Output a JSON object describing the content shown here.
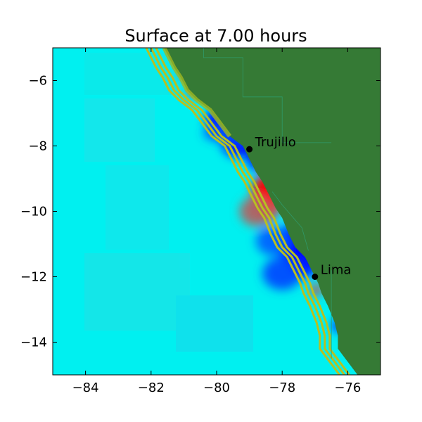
{
  "chart_data": {
    "type": "heatmap",
    "title": "Surface at 7.00 hours",
    "xlabel": "",
    "ylabel": "",
    "xlim": [
      -85,
      -75
    ],
    "ylim": [
      -15,
      -5
    ],
    "x_ticks": [
      -84,
      -82,
      -80,
      -78,
      -76
    ],
    "y_ticks": [
      -6,
      -8,
      -10,
      -12,
      -14
    ],
    "x_tick_labels": [
      "−84",
      "−82",
      "−80",
      "−78",
      "−76"
    ],
    "y_tick_labels": [
      "−6",
      "−8",
      "−10",
      "−12",
      "−14"
    ],
    "grid": false,
    "colors": {
      "ocean": "#00f0f0",
      "land": "#357a35",
      "contour": "#b8c020",
      "positive": "#ff0000",
      "negative": "#0000ff"
    },
    "cities": [
      {
        "name": "Trujillo",
        "lon": -79.0,
        "lat": -8.1
      },
      {
        "name": "Lima",
        "lon": -77.0,
        "lat": -12.0
      }
    ],
    "coastline": [
      [
        -81.6,
        -5.0
      ],
      [
        -81.3,
        -5.6
      ],
      [
        -81.1,
        -5.9
      ],
      [
        -80.9,
        -6.3
      ],
      [
        -80.6,
        -6.6
      ],
      [
        -80.2,
        -6.9
      ],
      [
        -79.9,
        -7.3
      ],
      [
        -79.6,
        -7.7
      ],
      [
        -79.2,
        -8.0
      ],
      [
        -79.0,
        -8.4
      ],
      [
        -78.8,
        -8.8
      ],
      [
        -78.6,
        -9.1
      ],
      [
        -78.4,
        -9.5
      ],
      [
        -78.2,
        -9.9
      ],
      [
        -78.0,
        -10.2
      ],
      [
        -77.8,
        -10.7
      ],
      [
        -77.6,
        -11.1
      ],
      [
        -77.3,
        -11.4
      ],
      [
        -77.1,
        -11.8
      ],
      [
        -76.9,
        -12.2
      ],
      [
        -76.8,
        -12.5
      ],
      [
        -76.6,
        -12.9
      ],
      [
        -76.4,
        -13.4
      ],
      [
        -76.3,
        -13.8
      ],
      [
        -76.3,
        -14.2
      ],
      [
        -76.0,
        -14.6
      ],
      [
        -75.7,
        -15.0
      ]
    ],
    "anomalies": [
      {
        "lon": -79.8,
        "lat": -7.2,
        "rx": 0.55,
        "ry": 0.35,
        "value": -1.0
      },
      {
        "lon": -79.3,
        "lat": -7.9,
        "rx": 0.55,
        "ry": 0.45,
        "value": -0.9
      },
      {
        "lon": -78.7,
        "lat": -8.4,
        "rx": 0.35,
        "ry": 0.35,
        "value": -1.0
      },
      {
        "lon": -79.5,
        "lat": -7.6,
        "rx": 0.9,
        "ry": 0.3,
        "value": -0.5
      },
      {
        "lon": -78.5,
        "lat": -9.6,
        "rx": 0.45,
        "ry": 0.75,
        "value": 1.0
      },
      {
        "lon": -78.8,
        "lat": -10.0,
        "rx": 0.5,
        "ry": 0.45,
        "value": 0.4
      },
      {
        "lon": -77.7,
        "lat": -11.0,
        "rx": 0.45,
        "ry": 0.6,
        "value": -1.0
      },
      {
        "lon": -77.4,
        "lat": -11.6,
        "rx": 0.45,
        "ry": 0.45,
        "value": -1.0
      },
      {
        "lon": -78.0,
        "lat": -11.9,
        "rx": 0.6,
        "ry": 0.5,
        "value": -0.5
      },
      {
        "lon": -78.3,
        "lat": -10.9,
        "rx": 0.5,
        "ry": 0.45,
        "value": -0.35
      },
      {
        "lon": -76.95,
        "lat": -12.4,
        "rx": 0.2,
        "ry": 0.2,
        "value": 0.5
      },
      {
        "lon": -76.3,
        "lat": -13.5,
        "rx": 0.15,
        "ry": 0.2,
        "value": -1.0
      },
      {
        "lon": -80.7,
        "lat": -6.35,
        "rx": 0.2,
        "ry": 0.15,
        "value": 0.55
      },
      {
        "lon": -81.0,
        "lat": -5.8,
        "rx": 0.12,
        "ry": 0.15,
        "value": 0.45
      }
    ]
  }
}
